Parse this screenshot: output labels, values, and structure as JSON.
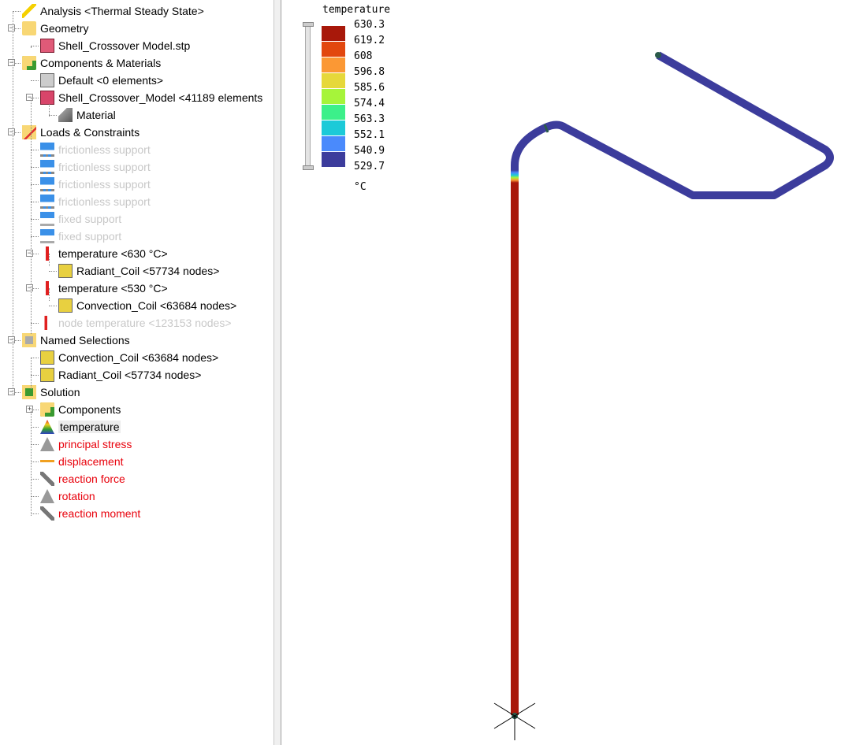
{
  "tree": [
    {
      "label": "Analysis <Thermal Steady State>",
      "icon": "lightning-icon",
      "level": 0,
      "state": "normal"
    },
    {
      "label": "Geometry",
      "icon": "folder-icon",
      "level": 0,
      "state": "normal",
      "expander": "-"
    },
    {
      "label": "Shell_Crossover Model.stp",
      "icon": "solid-part-icon",
      "level": 1,
      "state": "normal"
    },
    {
      "label": "Components & Materials",
      "icon": "components-folder-icon",
      "level": 0,
      "state": "normal",
      "expander": "-"
    },
    {
      "label": "Default <0 elements>",
      "icon": "component-gray-icon",
      "level": 1,
      "state": "normal"
    },
    {
      "label": "Shell_Crossover_Model <41189 elements",
      "icon": "component-red-icon",
      "level": 1,
      "state": "normal",
      "expander": "-"
    },
    {
      "label": "Material",
      "icon": "material-icon",
      "level": 2,
      "state": "normal"
    },
    {
      "label": "Loads & Constraints",
      "icon": "loads-folder-icon",
      "level": 0,
      "state": "normal",
      "expander": "-"
    },
    {
      "label": "frictionless support",
      "icon": "frictionless-support-icon",
      "level": 1,
      "state": "disabled"
    },
    {
      "label": "frictionless support",
      "icon": "frictionless-support-icon",
      "level": 1,
      "state": "disabled"
    },
    {
      "label": "frictionless support",
      "icon": "frictionless-support-icon",
      "level": 1,
      "state": "disabled"
    },
    {
      "label": "frictionless support",
      "icon": "frictionless-support-icon",
      "level": 1,
      "state": "disabled"
    },
    {
      "label": "fixed support",
      "icon": "fixed-support-icon",
      "level": 1,
      "state": "disabled"
    },
    {
      "label": "fixed support",
      "icon": "fixed-support-icon",
      "level": 1,
      "state": "disabled"
    },
    {
      "label": "temperature <630 °C>",
      "icon": "thermometer-icon",
      "level": 1,
      "state": "normal",
      "expander": "-"
    },
    {
      "label": "Radiant_Coil <57734 nodes>",
      "icon": "node-set-icon",
      "level": 2,
      "state": "normal"
    },
    {
      "label": "temperature <530 °C>",
      "icon": "thermometer-icon",
      "level": 1,
      "state": "normal",
      "expander": "-"
    },
    {
      "label": "Convection_Coil <63684 nodes>",
      "icon": "node-set-icon",
      "level": 2,
      "state": "normal"
    },
    {
      "label": "node temperature <123153 nodes>",
      "icon": "node-temperature-icon",
      "level": 1,
      "state": "disabled"
    },
    {
      "label": "Named Selections",
      "icon": "named-selections-folder-icon",
      "level": 0,
      "state": "normal",
      "expander": "-"
    },
    {
      "label": "Convection_Coil <63684 nodes>",
      "icon": "node-set-icon",
      "level": 1,
      "state": "normal"
    },
    {
      "label": "Radiant_Coil <57734 nodes>",
      "icon": "node-set-icon",
      "level": 1,
      "state": "normal"
    },
    {
      "label": "Solution",
      "icon": "solution-folder-icon",
      "level": 0,
      "state": "normal",
      "expander": "-"
    },
    {
      "label": "Components",
      "icon": "components-folder-icon",
      "level": 1,
      "state": "normal",
      "expander": "+"
    },
    {
      "label": "temperature",
      "icon": "result-color-icon",
      "level": 1,
      "state": "selected"
    },
    {
      "label": "principal stress",
      "icon": "result-gray-icon",
      "level": 1,
      "state": "error"
    },
    {
      "label": "displacement",
      "icon": "displacement-icon",
      "level": 1,
      "state": "error"
    },
    {
      "label": "reaction force",
      "icon": "reaction-force-icon",
      "level": 1,
      "state": "error"
    },
    {
      "label": "rotation",
      "icon": "result-gray-icon",
      "level": 1,
      "state": "error"
    },
    {
      "label": "reaction moment",
      "icon": "reaction-moment-icon",
      "level": 1,
      "state": "error"
    }
  ],
  "legend": {
    "title": "temperature",
    "unit": "°C",
    "values": [
      "630.3",
      "619.2",
      "608",
      "596.8",
      "585.6",
      "574.4",
      "563.3",
      "552.1",
      "540.9",
      "529.7"
    ],
    "colors": [
      "#a8180a",
      "#e2470e",
      "#fb9834",
      "#e6d83a",
      "#a6f43a",
      "#3cf08a",
      "#1ccad8",
      "#4a8afc",
      "#3c3c9c"
    ]
  },
  "model": {
    "hot_color": "#a8180a",
    "cold_color": "#3c3c9c"
  }
}
